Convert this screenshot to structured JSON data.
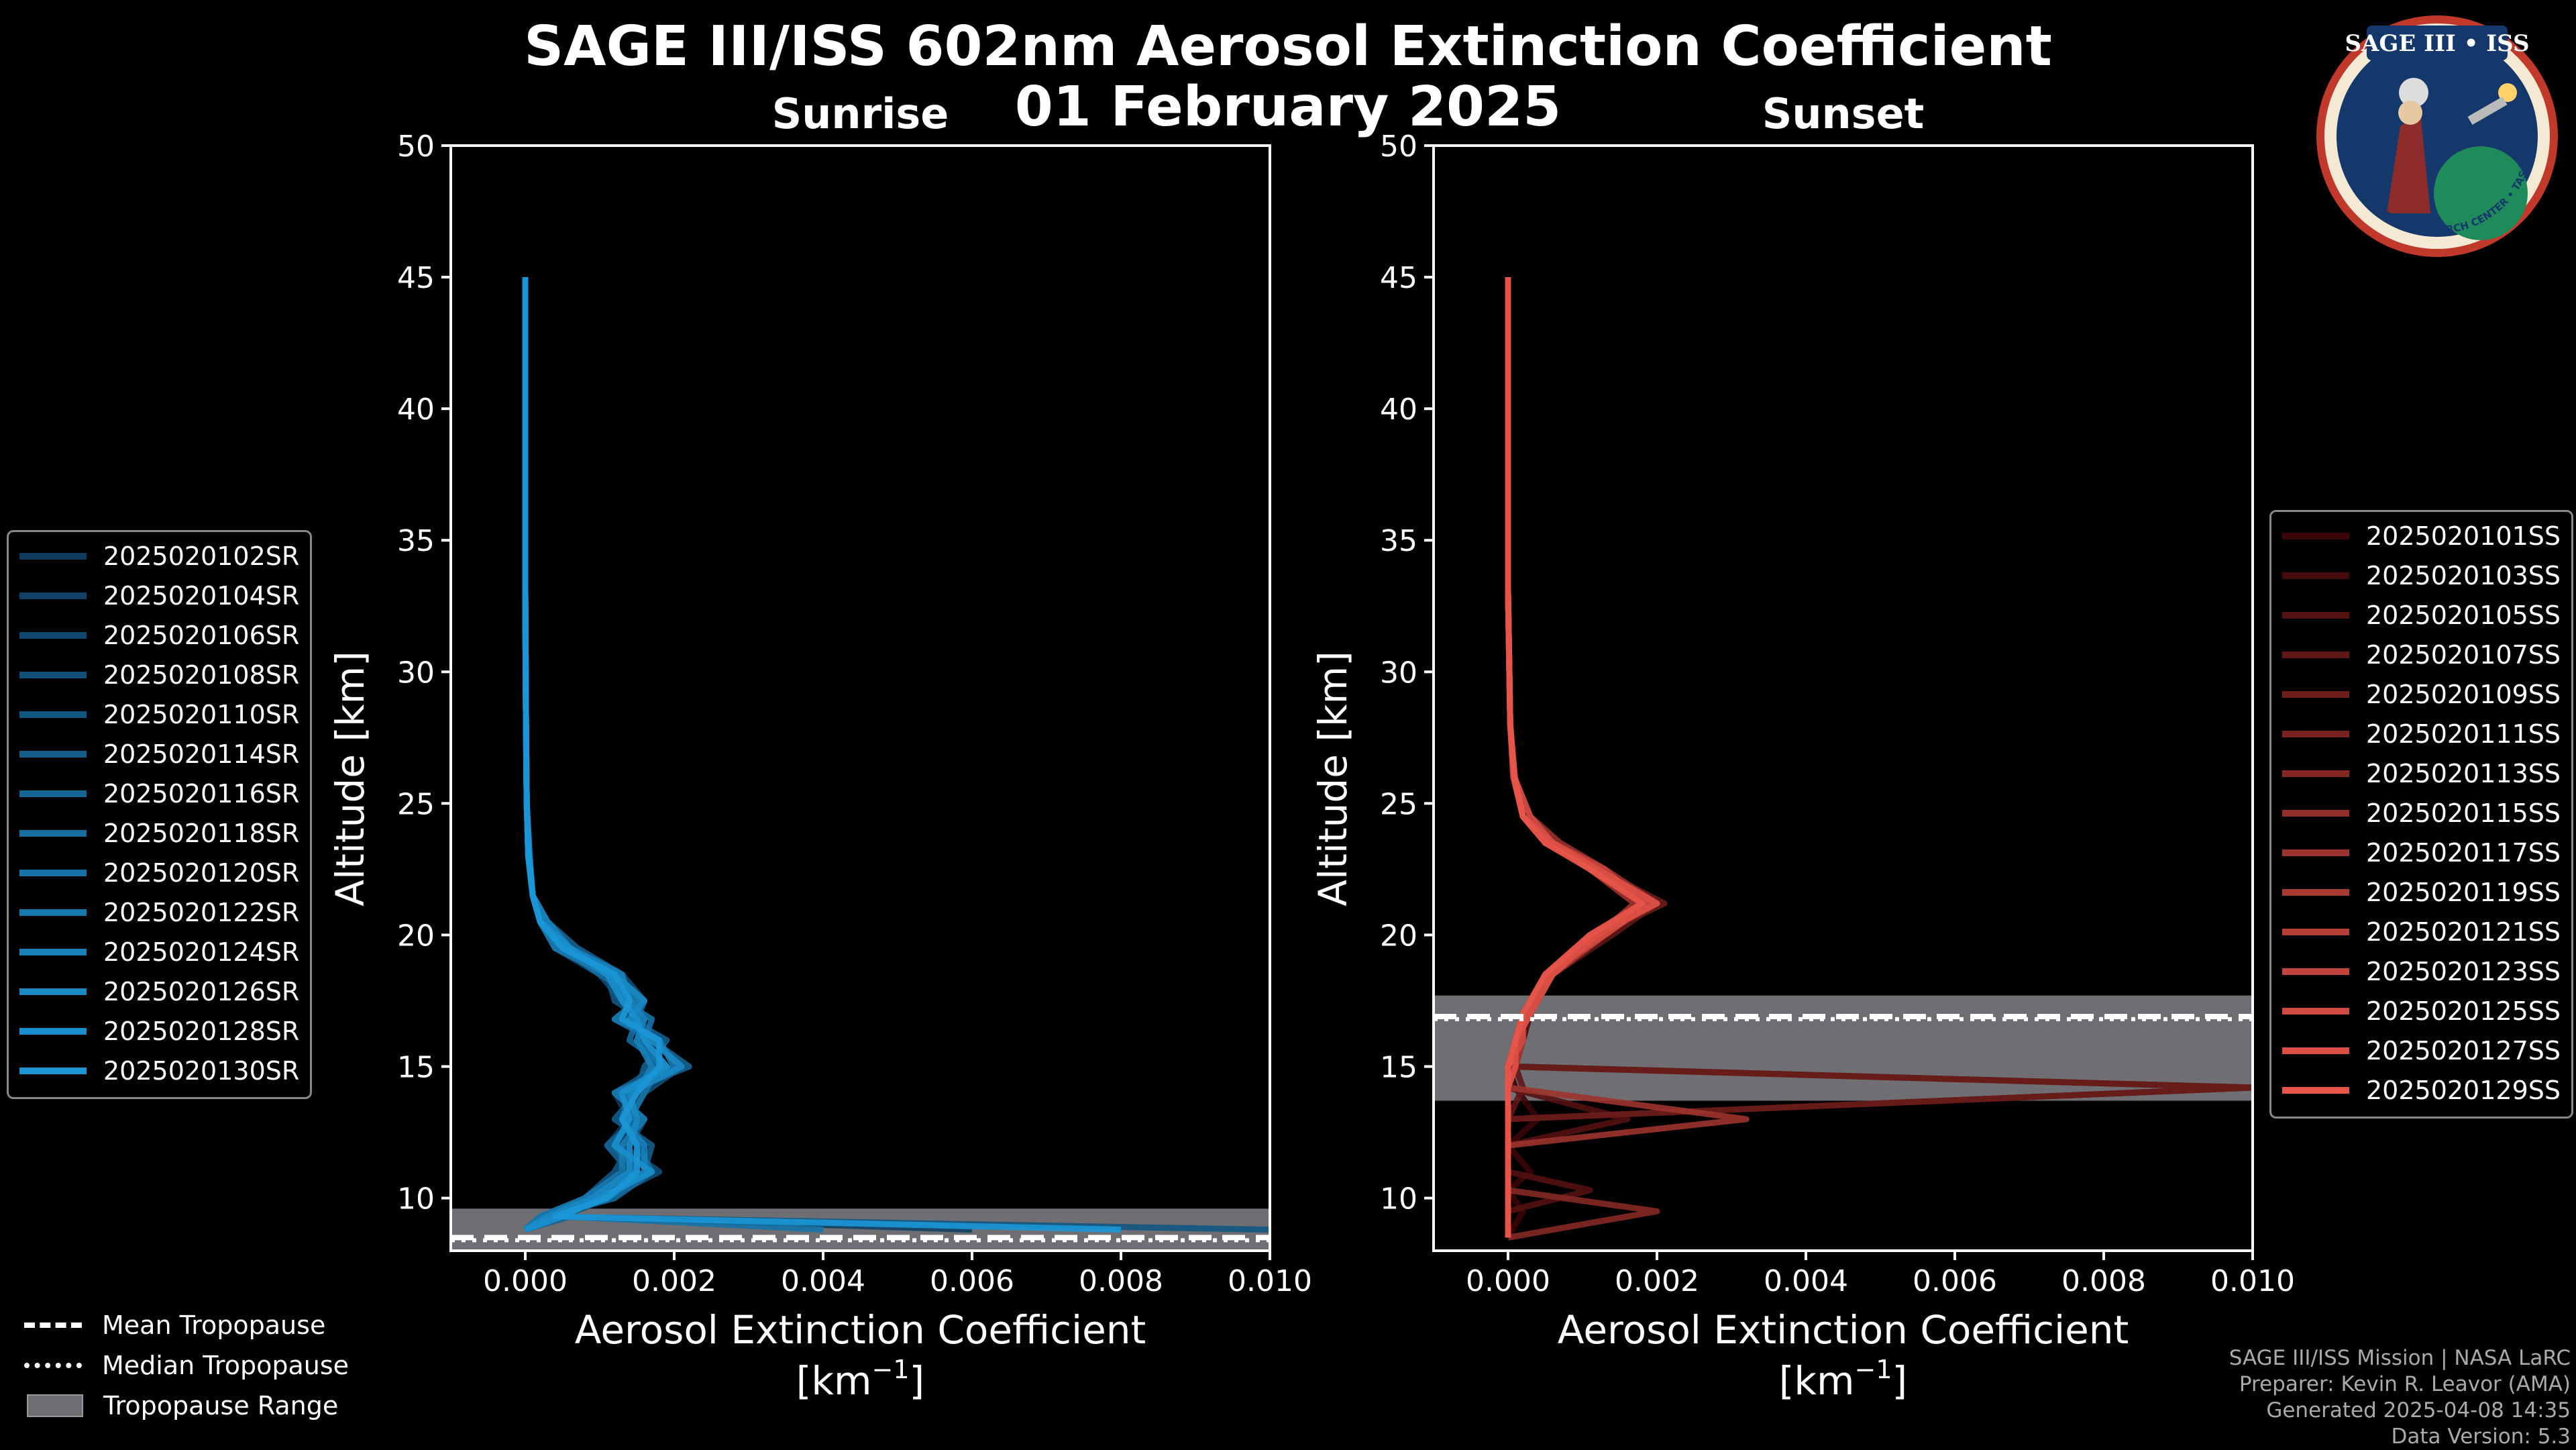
{
  "title": "SAGE III/ISS 602nm Aerosol Extinction Coefficient",
  "date": "01 February 2025",
  "credits": [
    "SAGE III/ISS Mission | NASA LaRC",
    "Preparer: Kevin R. Leavor (AMA)",
    "Generated 2025-04-08 14:35",
    "Data Version: 5.3"
  ],
  "logo": {
    "title": "SAGE III • ISS",
    "ring_text": "BALL • NASA LANGLEY RESEARCH CENTER • TAS-I • ESA"
  },
  "tropopause_legend": [
    {
      "label": "Mean Tropopause",
      "style": "dashed"
    },
    {
      "label": "Median Tropopause",
      "style": "dotted"
    },
    {
      "label": "Tropopause Range",
      "style": "box"
    }
  ],
  "chart_data": [
    {
      "type": "line",
      "title": "Sunrise",
      "xlabel": "Aerosol Extinction Coefficient",
      "xunit_base": "[km",
      "xunit_exp": "−1",
      "xunit_end": "]",
      "ylabel": "Altitude [km]",
      "xlim": [
        -0.001,
        0.01
      ],
      "ylim": [
        8,
        50
      ],
      "xticks": [
        0.0,
        0.002,
        0.004,
        0.006,
        0.008,
        0.01
      ],
      "xtick_labels": [
        "0.000",
        "0.002",
        "0.004",
        "0.006",
        "0.008",
        "0.010"
      ],
      "yticks": [
        10,
        15,
        20,
        25,
        30,
        35,
        40,
        45,
        50
      ],
      "tropopause": {
        "mean": 8.5,
        "median": 8.4,
        "range": [
          8.0,
          9.6
        ]
      },
      "palette": {
        "dark": "#0e3a5c",
        "light": "#1b96d6"
      },
      "series": [
        {
          "name": "2025020102SR",
          "values": [
            0.0,
            0.0,
            0.0,
            0.0,
            1e-05,
            2e-05,
            5e-05,
            0.0001,
            0.0002,
            0.0005,
            0.0011,
            0.0015,
            0.0013,
            0.0016,
            0.0019,
            0.0012,
            0.0014,
            0.0011,
            0.0017,
            0.0008,
            0.0003,
            0.0
          ]
        },
        {
          "name": "2025020104SR",
          "values": [
            0.0,
            0.0,
            0.0,
            0.0,
            1e-05,
            2e-05,
            4e-05,
            0.0001,
            0.0002,
            0.0006,
            0.0012,
            0.0014,
            0.0015,
            0.0018,
            0.002,
            0.0014,
            0.0013,
            0.0016,
            0.0014,
            0.001,
            0.0004,
            0.006
          ]
        },
        {
          "name": "2025020106SR",
          "values": [
            0.0,
            0.0,
            0.0,
            0.0,
            1e-05,
            2e-05,
            5e-05,
            0.0001,
            0.0002,
            0.0004,
            0.001,
            0.0013,
            0.0014,
            0.0016,
            0.0017,
            0.0013,
            0.0015,
            0.0012,
            0.0015,
            0.0009,
            0.0002,
            0.0
          ]
        },
        {
          "name": "2025020108SR",
          "values": [
            0.0,
            0.0,
            0.0,
            0.0,
            1e-05,
            2e-05,
            6e-05,
            0.0001,
            0.0003,
            0.0006,
            0.0013,
            0.0016,
            0.0012,
            0.0017,
            0.0021,
            0.0016,
            0.0014,
            0.0013,
            0.0018,
            0.0011,
            0.0005,
            0.0
          ]
        },
        {
          "name": "2025020110SR",
          "values": [
            0.0,
            0.0,
            0.0,
            0.0,
            1e-05,
            2e-05,
            4e-05,
            0.0001,
            0.0002,
            0.0005,
            0.0011,
            0.0012,
            0.0016,
            0.0015,
            0.0018,
            0.0012,
            0.0016,
            0.0014,
            0.0012,
            0.0008,
            0.0003,
            0.01
          ]
        },
        {
          "name": "2025020114SR",
          "values": [
            0.0,
            0.0,
            0.0,
            0.0,
            1e-05,
            2e-05,
            5e-05,
            0.0001,
            0.0002,
            0.0006,
            0.0012,
            0.0015,
            0.0014,
            0.0019,
            0.0016,
            0.0015,
            0.0012,
            0.0017,
            0.0016,
            0.001,
            0.0004,
            0.0
          ]
        },
        {
          "name": "2025020116SR",
          "values": [
            0.0,
            0.0,
            0.0,
            0.0,
            1e-05,
            2e-05,
            5e-05,
            0.0001,
            0.0003,
            0.0007,
            0.0013,
            0.0014,
            0.0013,
            0.0017,
            0.0022,
            0.0013,
            0.0015,
            0.0011,
            0.0014,
            0.0009,
            0.0006,
            0.0
          ]
        },
        {
          "name": "2025020118SR",
          "values": [
            0.0,
            0.0,
            0.0,
            0.0,
            1e-05,
            2e-05,
            4e-05,
            0.0001,
            0.0002,
            0.0005,
            0.001,
            0.0016,
            0.0015,
            0.0014,
            0.0019,
            0.0014,
            0.0013,
            0.0015,
            0.0017,
            0.0012,
            0.0003,
            0.0
          ]
        },
        {
          "name": "2025020120SR",
          "values": [
            0.0,
            0.0,
            0.0,
            0.0,
            1e-05,
            2e-05,
            6e-05,
            0.0001,
            0.0002,
            0.0006,
            0.0012,
            0.0013,
            0.0017,
            0.0016,
            0.0018,
            0.0016,
            0.0014,
            0.0012,
            0.0015,
            0.001,
            0.0005,
            0.004
          ]
        },
        {
          "name": "2025020122SR",
          "values": [
            0.0,
            0.0,
            0.0,
            0.0,
            1e-05,
            2e-05,
            5e-05,
            0.0001,
            0.0002,
            0.0004,
            0.0011,
            0.0015,
            0.0012,
            0.0018,
            0.002,
            0.0012,
            0.0016,
            0.0013,
            0.0013,
            0.0008,
            0.0002,
            0.0
          ]
        },
        {
          "name": "2025020124SR",
          "values": [
            0.0,
            0.0,
            0.0,
            0.0,
            1e-05,
            2e-05,
            4e-05,
            0.0001,
            0.0003,
            0.0006,
            0.0013,
            0.0014,
            0.0016,
            0.0015,
            0.0017,
            0.0015,
            0.0013,
            0.0016,
            0.0016,
            0.0011,
            0.0004,
            0.0
          ]
        },
        {
          "name": "2025020126SR",
          "values": [
            0.0,
            0.0,
            0.0,
            0.0,
            1e-05,
            2e-05,
            5e-05,
            0.0001,
            0.0002,
            0.0005,
            0.0012,
            0.0016,
            0.0014,
            0.0017,
            0.0021,
            0.0014,
            0.0015,
            0.0014,
            0.0014,
            0.0009,
            0.0003,
            0.0
          ]
        },
        {
          "name": "2025020128SR",
          "values": [
            0.0,
            0.0,
            0.0,
            0.0,
            1e-05,
            2e-05,
            5e-05,
            0.0001,
            0.0002,
            0.0006,
            0.0011,
            0.0013,
            0.0015,
            0.0016,
            0.0019,
            0.0013,
            0.0014,
            0.0012,
            0.0017,
            0.001,
            0.0005,
            0.0
          ]
        },
        {
          "name": "2025020130SR",
          "values": [
            0.0,
            0.0,
            0.0,
            0.0,
            1e-05,
            2e-05,
            4e-05,
            0.0001,
            0.0002,
            0.0005,
            0.0012,
            0.0014,
            0.0013,
            0.0018,
            0.0018,
            0.0015,
            0.0013,
            0.0015,
            0.0015,
            0.0011,
            0.0004,
            0.008
          ]
        }
      ]
    },
    {
      "type": "line",
      "title": "Sunset",
      "xlabel": "Aerosol Extinction Coefficient",
      "xunit_base": "[km",
      "xunit_exp": "−1",
      "xunit_end": "]",
      "ylabel": "Altitude [km]",
      "xlim": [
        -0.001,
        0.01
      ],
      "ylim": [
        8,
        50
      ],
      "xticks": [
        0.0,
        0.002,
        0.004,
        0.006,
        0.008,
        0.01
      ],
      "xtick_labels": [
        "0.000",
        "0.002",
        "0.004",
        "0.006",
        "0.008",
        "0.010"
      ],
      "yticks": [
        10,
        15,
        20,
        25,
        30,
        35,
        40,
        45,
        50
      ],
      "tropopause": {
        "mean": 16.9,
        "median": 16.8,
        "range": [
          13.7,
          17.7
        ]
      },
      "palette": {
        "dark": "#3a0608",
        "light": "#e8554a"
      },
      "series": [
        {
          "name": "2025020101SS",
          "values": [
            0.0,
            0.0,
            0.0,
            0.0,
            3e-05,
            8e-05,
            0.0002,
            0.0006,
            0.0011,
            0.0017,
            0.0012,
            0.0005,
            0.0002,
            0.0001,
            0.0,
            0.0001,
            0.0004,
            0.0,
            0.0003,
            0.0,
            0.0002,
            0.0
          ]
        },
        {
          "name": "2025020103SS",
          "values": [
            0.0,
            0.0,
            0.0,
            0.0,
            3e-05,
            7e-05,
            0.0002,
            0.0005,
            0.0012,
            0.0019,
            0.0013,
            0.0006,
            0.0003,
            0.0002,
            0.0001,
            0.01,
            0.0,
            0.0,
            0.0,
            0.0,
            0.0,
            0.0
          ]
        },
        {
          "name": "2025020105SS",
          "values": [
            0.0,
            0.0,
            0.0,
            0.0,
            3e-05,
            9e-05,
            0.0002,
            0.0006,
            0.0011,
            0.0018,
            0.0011,
            0.0005,
            0.0002,
            0.0001,
            0.0,
            0.0,
            0.0016,
            0.0,
            0.0,
            0.0011,
            0.0,
            0.0
          ]
        },
        {
          "name": "2025020107SS",
          "values": [
            0.0,
            0.0,
            0.0,
            0.0,
            3e-05,
            8e-05,
            0.0003,
            0.0007,
            0.0013,
            0.002,
            0.0014,
            0.0006,
            0.0002,
            0.0002,
            0.0001,
            0.0002,
            0.0,
            0.0,
            0.0,
            0.0,
            0.0,
            0.0
          ]
        },
        {
          "name": "2025020109SS",
          "values": [
            0.0,
            0.0,
            0.0,
            0.0,
            3e-05,
            8e-05,
            0.0002,
            0.0006,
            0.0012,
            0.0021,
            0.0012,
            0.0005,
            0.0003,
            0.0001,
            0.0,
            0.01,
            0.0,
            0.0,
            0.0,
            0.0,
            0.0,
            0.0
          ]
        },
        {
          "name": "2025020111SS",
          "values": [
            0.0,
            0.0,
            0.0,
            0.0,
            3e-05,
            8e-05,
            0.0002,
            0.0005,
            0.0011,
            0.0018,
            0.0013,
            0.0006,
            0.0002,
            0.0001,
            0.0001,
            0.0,
            0.0,
            0.0,
            0.0,
            0.0,
            0.0,
            0.0
          ]
        },
        {
          "name": "2025020113SS",
          "values": [
            0.0,
            0.0,
            0.0,
            0.0,
            3e-05,
            7e-05,
            0.0002,
            0.0006,
            0.0012,
            0.0019,
            0.0011,
            0.0005,
            0.0002,
            0.0002,
            0.0,
            0.0,
            0.0,
            0.0,
            0.0,
            0.0,
            0.002,
            0.0
          ]
        },
        {
          "name": "2025020115SS",
          "values": [
            0.0,
            0.0,
            0.0,
            0.0,
            3e-05,
            9e-05,
            0.0003,
            0.0007,
            0.0013,
            0.002,
            0.0012,
            0.0006,
            0.0003,
            0.0001,
            0.0001,
            0.0,
            0.0,
            0.0,
            0.0,
            0.0,
            0.0,
            0.0
          ]
        },
        {
          "name": "2025020117SS",
          "values": [
            0.0,
            0.0,
            0.0,
            0.0,
            3e-05,
            8e-05,
            0.0002,
            0.0006,
            0.0011,
            0.0017,
            0.0012,
            0.0005,
            0.0002,
            0.0001,
            0.0,
            0.0,
            0.0032,
            0.0,
            0.0,
            0.0,
            0.0,
            0.0
          ]
        },
        {
          "name": "2025020119SS",
          "values": [
            0.0,
            0.0,
            0.0,
            0.0,
            3e-05,
            8e-05,
            0.0002,
            0.0006,
            0.0012,
            0.0019,
            0.0013,
            0.0006,
            0.0002,
            0.0002,
            0.0001,
            0.0,
            0.0,
            0.0,
            0.0,
            0.0,
            0.0,
            0.0
          ]
        },
        {
          "name": "2025020121SS",
          "values": [
            0.0,
            0.0,
            0.0,
            0.0,
            3e-05,
            8e-05,
            0.0002,
            0.0005,
            0.0012,
            0.002,
            0.0011,
            0.0005,
            0.0003,
            0.0001,
            0.0,
            0.0,
            0.0,
            0.0,
            0.0,
            0.0,
            0.0,
            0.0
          ]
        },
        {
          "name": "2025020123SS",
          "values": [
            0.0,
            0.0,
            0.0,
            0.0,
            3e-05,
            7e-05,
            0.0002,
            0.0006,
            0.0013,
            0.0018,
            0.0012,
            0.0006,
            0.0002,
            0.0001,
            0.0001,
            0.0,
            0.0,
            0.0,
            0.0,
            0.0,
            0.0,
            0.0
          ]
        },
        {
          "name": "2025020125SS",
          "values": [
            0.0,
            0.0,
            0.0,
            0.0,
            3e-05,
            8e-05,
            0.0003,
            0.0006,
            0.0011,
            0.0019,
            0.0013,
            0.0005,
            0.0002,
            0.0002,
            0.0,
            0.0,
            0.0,
            0.0,
            0.0,
            0.0,
            0.0,
            0.0
          ]
        },
        {
          "name": "2025020127SS",
          "values": [
            0.0,
            0.0,
            0.0,
            0.0,
            3e-05,
            8e-05,
            0.0002,
            0.0006,
            0.0012,
            0.002,
            0.0012,
            0.0006,
            0.0003,
            0.0001,
            0.0001,
            0.0,
            0.0,
            0.0,
            0.0,
            0.0,
            0.0,
            0.0
          ]
        },
        {
          "name": "2025020129SS",
          "values": [
            0.0,
            0.0,
            0.0,
            0.0,
            3e-05,
            9e-05,
            0.0002,
            0.0005,
            0.0011,
            0.0018,
            0.0011,
            0.0005,
            0.0002,
            0.0001,
            0.0,
            0.0,
            0.0,
            0.0,
            0.0,
            0.0,
            0.0,
            0.0
          ]
        }
      ],
      "altitudes": [
        45,
        42,
        38,
        33,
        28,
        26,
        24.5,
        23.5,
        22.5,
        21.2,
        20,
        18.5,
        17,
        16,
        15,
        14.2,
        13,
        12,
        11,
        10.3,
        9.5,
        8.5
      ]
    }
  ]
}
